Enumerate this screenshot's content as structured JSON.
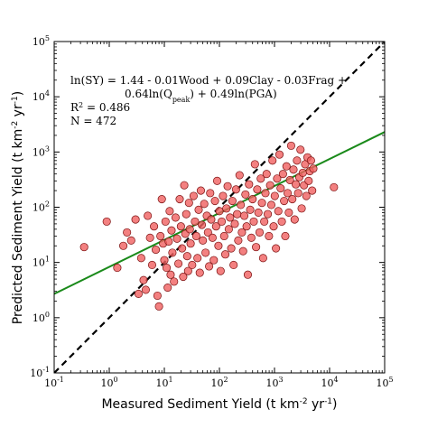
{
  "chart_data": {
    "type": "scatter",
    "xscale": "log",
    "yscale": "log",
    "xlim": [
      0.1,
      100000
    ],
    "ylim": [
      0.1,
      100000
    ],
    "xlabel": {
      "text": "Measured Sediment Yield (t km",
      "sup1": "-2",
      "mid": " yr",
      "sup2": "-1",
      "end": ")"
    },
    "ylabel": {
      "text": "Predicted Sediment Yield (t km",
      "sup1": "-2",
      "mid": " yr",
      "sup2": "-1",
      "end": ")"
    },
    "ticks": [
      {
        "value": 0.1,
        "base": "10",
        "exp": "-1"
      },
      {
        "value": 1,
        "base": "10",
        "exp": "0"
      },
      {
        "value": 10,
        "base": "10",
        "exp": "1"
      },
      {
        "value": 100,
        "base": "10",
        "exp": "2"
      },
      {
        "value": 1000,
        "base": "10",
        "exp": "3"
      },
      {
        "value": 10000,
        "base": "10",
        "exp": "4"
      },
      {
        "value": 100000,
        "base": "10",
        "exp": "5"
      }
    ],
    "equation": {
      "line1": "ln(SY) = 1.44 - 0.01Wood + 0.09Clay - 0.03Frag +",
      "line2_a": "0.64ln(Q",
      "line2_sub": "peak",
      "line2_b": ") + 0.49ln(PGA)",
      "r2_a": "R",
      "r2_sup": "2",
      "r2_b": " = 0.486",
      "n": "N = 472"
    },
    "one_to_one_line": {
      "color": "#000000",
      "style": "dashed",
      "from": [
        0.1,
        0.1
      ],
      "to": [
        100000,
        100000
      ]
    },
    "fit_line": {
      "color": "#1a8a1a",
      "from": [
        0.1,
        2.7
      ],
      "to": [
        100000,
        2300
      ]
    },
    "marker_color": "#f06060",
    "marker_edge": "#7a1010",
    "points": [
      [
        0.35,
        19
      ],
      [
        0.9,
        55
      ],
      [
        1.4,
        8
      ],
      [
        1.8,
        20
      ],
      [
        2.1,
        35
      ],
      [
        2.5,
        25
      ],
      [
        3.0,
        60
      ],
      [
        3.4,
        2.7
      ],
      [
        3.8,
        12
      ],
      [
        4.2,
        4.8
      ],
      [
        4.6,
        3.2
      ],
      [
        5.0,
        70
      ],
      [
        5.5,
        28
      ],
      [
        6.0,
        9
      ],
      [
        6.5,
        45
      ],
      [
        7.0,
        17
      ],
      [
        7.5,
        2.5
      ],
      [
        8.0,
        1.6
      ],
      [
        8.5,
        30
      ],
      [
        9.0,
        140
      ],
      [
        9.5,
        22
      ],
      [
        10,
        11
      ],
      [
        10.5,
        55
      ],
      [
        11,
        8
      ],
      [
        11.5,
        3.5
      ],
      [
        12,
        24
      ],
      [
        12.5,
        85
      ],
      [
        13,
        6
      ],
      [
        13.5,
        38
      ],
      [
        14,
        15
      ],
      [
        15,
        4.5
      ],
      [
        16,
        65
      ],
      [
        17,
        27
      ],
      [
        18,
        9.5
      ],
      [
        19,
        140
      ],
      [
        20,
        45
      ],
      [
        21,
        18
      ],
      [
        22,
        5.5
      ],
      [
        23,
        250
      ],
      [
        24,
        33
      ],
      [
        25,
        75
      ],
      [
        26,
        13
      ],
      [
        27,
        7
      ],
      [
        28,
        120
      ],
      [
        29,
        40
      ],
      [
        30,
        22
      ],
      [
        32,
        9
      ],
      [
        34,
        160
      ],
      [
        36,
        55
      ],
      [
        38,
        30
      ],
      [
        40,
        12
      ],
      [
        42,
        90
      ],
      [
        44,
        6.5
      ],
      [
        46,
        200
      ],
      [
        48,
        48
      ],
      [
        50,
        25
      ],
      [
        53,
        115
      ],
      [
        56,
        15
      ],
      [
        59,
        70
      ],
      [
        62,
        35
      ],
      [
        65,
        8.5
      ],
      [
        68,
        180
      ],
      [
        71,
        60
      ],
      [
        75,
        28
      ],
      [
        79,
        11
      ],
      [
        83,
        130
      ],
      [
        87,
        45
      ],
      [
        91,
        300
      ],
      [
        96,
        20
      ],
      [
        100,
        85
      ],
      [
        105,
        7
      ],
      [
        110,
        55
      ],
      [
        116,
        160
      ],
      [
        122,
        30
      ],
      [
        128,
        14
      ],
      [
        134,
        95
      ],
      [
        141,
        240
      ],
      [
        148,
        40
      ],
      [
        156,
        65
      ],
      [
        164,
        18
      ],
      [
        172,
        130
      ],
      [
        181,
        9
      ],
      [
        190,
        50
      ],
      [
        200,
        210
      ],
      [
        210,
        75
      ],
      [
        220,
        25
      ],
      [
        232,
        380
      ],
      [
        244,
        110
      ],
      [
        256,
        35
      ],
      [
        269,
        16
      ],
      [
        283,
        70
      ],
      [
        297,
        170
      ],
      [
        312,
        45
      ],
      [
        328,
        6
      ],
      [
        345,
        260
      ],
      [
        362,
        90
      ],
      [
        380,
        28
      ],
      [
        400,
        140
      ],
      [
        420,
        55
      ],
      [
        441,
        600
      ],
      [
        463,
        19
      ],
      [
        486,
        210
      ],
      [
        510,
        80
      ],
      [
        536,
        35
      ],
      [
        563,
        330
      ],
      [
        591,
        120
      ],
      [
        621,
        12
      ],
      [
        652,
        55
      ],
      [
        685,
        180
      ],
      [
        719,
        400
      ],
      [
        755,
        75
      ],
      [
        793,
        30
      ],
      [
        833,
        250
      ],
      [
        875,
        110
      ],
      [
        918,
        700
      ],
      [
        964,
        45
      ],
      [
        1012,
        160
      ],
      [
        1063,
        18
      ],
      [
        1116,
        330
      ],
      [
        1172,
        85
      ],
      [
        1230,
        900
      ],
      [
        1292,
        220
      ],
      [
        1357,
        55
      ],
      [
        1425,
        400
      ],
      [
        1496,
        130
      ],
      [
        1571,
        30
      ],
      [
        1650,
        550
      ],
      [
        1732,
        180
      ],
      [
        1819,
        80
      ],
      [
        1910,
        310
      ],
      [
        2005,
        1300
      ],
      [
        2106,
        140
      ],
      [
        2211,
        480
      ],
      [
        2321,
        60
      ],
      [
        2437,
        260
      ],
      [
        2559,
        700
      ],
      [
        2687,
        180
      ],
      [
        2822,
        350
      ],
      [
        2963,
        1100
      ],
      [
        3111,
        95
      ],
      [
        3267,
        420
      ],
      [
        3430,
        250
      ],
      [
        3601,
        600
      ],
      [
        3782,
        160
      ],
      [
        3971,
        800
      ],
      [
        4169,
        300
      ],
      [
        4378,
        450
      ],
      [
        4597,
        700
      ],
      [
        4827,
        200
      ],
      [
        5068,
        500
      ],
      [
        12000,
        230
      ]
    ]
  }
}
